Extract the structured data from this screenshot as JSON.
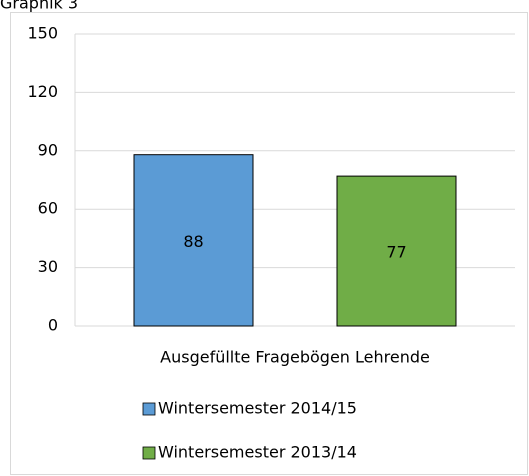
{
  "caption": "Graphik 3",
  "chart_data": {
    "type": "bar",
    "categories": [
      "Ausgefüllte Fragebögen Lehrende"
    ],
    "series": [
      {
        "name": "Wintersemester 2014/15",
        "color": "#5b9bd5",
        "values": [
          88
        ]
      },
      {
        "name": "Wintersemester 2013/14",
        "color": "#70ad47",
        "values": [
          77
        ]
      }
    ],
    "ylim": [
      0,
      150
    ],
    "yticks": [
      0,
      30,
      60,
      90,
      120,
      150
    ],
    "grid": true,
    "legend": "bottom"
  }
}
